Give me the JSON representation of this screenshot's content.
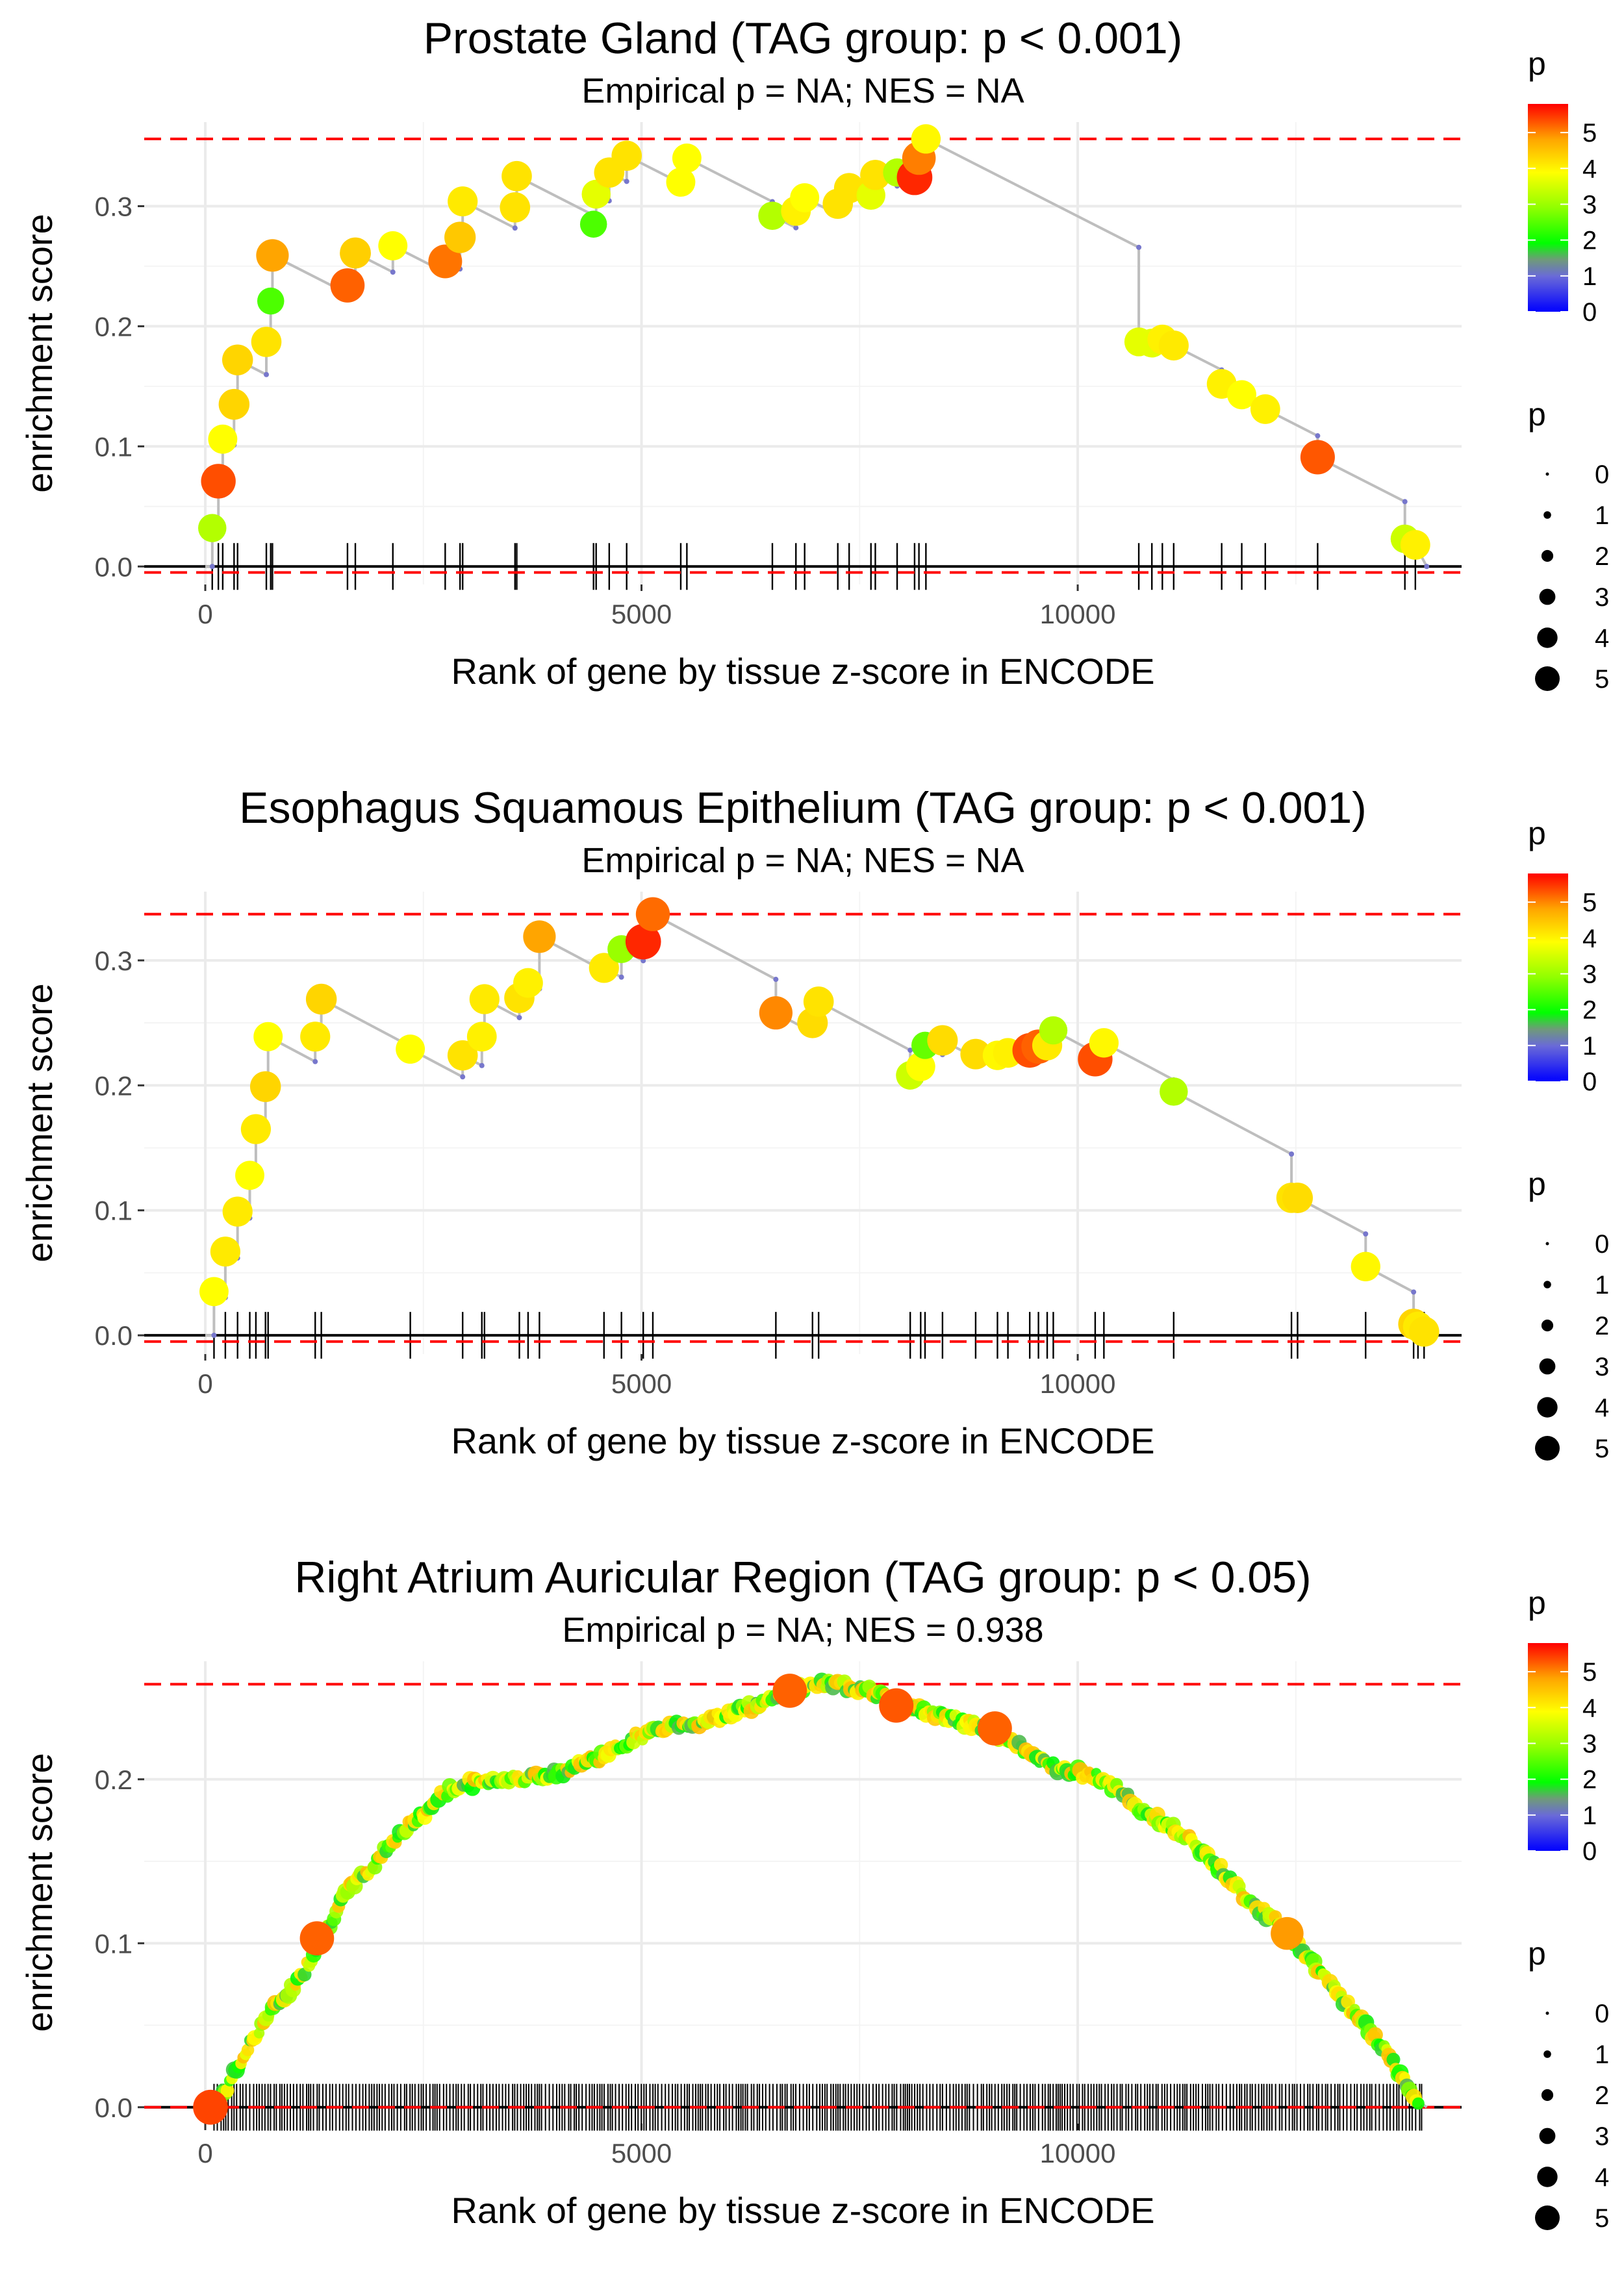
{
  "chart_data": [
    {
      "type": "scatter",
      "title": "Prostate Gland (TAG group: p < 0.001)",
      "subtitle": "Empirical p = NA; NES = NA",
      "xlabel": "Rank of gene by tissue z-score in ENCODE",
      "ylabel": "enrichment score",
      "xlim": [
        -700,
        14400
      ],
      "ylim": [
        -0.015,
        0.37
      ],
      "xticks": [
        0,
        5000,
        10000
      ],
      "yticks": [
        0.0,
        0.1,
        0.2,
        0.3
      ],
      "ytick_labels": [
        "0.0",
        "0.1",
        "0.2",
        "0.3"
      ],
      "hlines": [
        0.356,
        -0.005
      ],
      "end_rank": 14000,
      "hits": [
        [
          80,
          0.032,
          2.7
        ],
        [
          150,
          0.071,
          5.2
        ],
        [
          200,
          0.106,
          3.0
        ],
        [
          330,
          0.135,
          3.6
        ],
        [
          370,
          0.172,
          3.6
        ],
        [
          700,
          0.187,
          3.4
        ],
        [
          750,
          0.221,
          2.3
        ],
        [
          770,
          0.259,
          4.3
        ],
        [
          1630,
          0.234,
          5.0
        ],
        [
          1720,
          0.261,
          3.7
        ],
        [
          2150,
          0.267,
          3.0
        ],
        [
          2750,
          0.254,
          4.8
        ],
        [
          2920,
          0.274,
          3.8
        ],
        [
          2950,
          0.304,
          3.3
        ],
        [
          3550,
          0.299,
          3.4
        ],
        [
          3570,
          0.325,
          3.4
        ],
        [
          4450,
          0.285,
          2.3
        ],
        [
          4480,
          0.31,
          2.9
        ],
        [
          4630,
          0.328,
          3.4
        ],
        [
          4830,
          0.342,
          3.4
        ],
        [
          5450,
          0.32,
          3.0
        ],
        [
          5520,
          0.34,
          3.0
        ],
        [
          6500,
          0.292,
          2.7
        ],
        [
          6770,
          0.296,
          3.2
        ],
        [
          6870,
          0.307,
          3.0
        ],
        [
          7250,
          0.302,
          3.4
        ],
        [
          7380,
          0.315,
          3.4
        ],
        [
          7630,
          0.309,
          2.9
        ],
        [
          7680,
          0.326,
          3.4
        ],
        [
          7930,
          0.328,
          2.7
        ],
        [
          8130,
          0.324,
          5.6
        ],
        [
          8180,
          0.34,
          4.7
        ],
        [
          8260,
          0.356,
          3.1
        ],
        [
          10700,
          0.187,
          2.9
        ],
        [
          10850,
          0.186,
          2.9
        ],
        [
          10970,
          0.189,
          3.2
        ],
        [
          11100,
          0.184,
          3.3
        ],
        [
          11650,
          0.152,
          3.2
        ],
        [
          11880,
          0.143,
          3.0
        ],
        [
          12150,
          0.131,
          3.2
        ],
        [
          12750,
          0.091,
          5.1
        ],
        [
          13750,
          0.023,
          2.8
        ],
        [
          13870,
          0.018,
          3.2
        ]
      ]
    },
    {
      "type": "scatter",
      "title": "Esophagus Squamous Epithelium (TAG group: p < 0.001)",
      "subtitle": "Empirical p = NA; NES = NA",
      "xlabel": "Rank of gene by tissue z-score in ENCODE",
      "ylabel": "enrichment score",
      "xlim": [
        -700,
        14400
      ],
      "ylim": [
        -0.015,
        0.355
      ],
      "xticks": [
        0,
        5000,
        10000
      ],
      "yticks": [
        0.0,
        0.1,
        0.2,
        0.3
      ],
      "ytick_labels": [
        "0.0",
        "0.1",
        "0.2",
        "0.3"
      ],
      "hlines": [
        0.337,
        -0.005
      ],
      "end_rank": 14000,
      "hits": [
        [
          100,
          0.035,
          3.0
        ],
        [
          230,
          0.067,
          3.3
        ],
        [
          370,
          0.099,
          3.3
        ],
        [
          510,
          0.128,
          3.0
        ],
        [
          580,
          0.165,
          3.3
        ],
        [
          690,
          0.199,
          3.6
        ],
        [
          720,
          0.239,
          3.0
        ],
        [
          1260,
          0.239,
          3.3
        ],
        [
          1330,
          0.269,
          3.6
        ],
        [
          2350,
          0.229,
          3.0
        ],
        [
          2950,
          0.224,
          3.4
        ],
        [
          3170,
          0.239,
          3.2
        ],
        [
          3200,
          0.269,
          3.3
        ],
        [
          3600,
          0.27,
          3.4
        ],
        [
          3700,
          0.282,
          3.2
        ],
        [
          3830,
          0.319,
          4.3
        ],
        [
          4570,
          0.294,
          3.3
        ],
        [
          4770,
          0.309,
          2.6
        ],
        [
          5020,
          0.315,
          5.6
        ],
        [
          5130,
          0.337,
          4.9
        ],
        [
          6540,
          0.258,
          4.6
        ],
        [
          6960,
          0.25,
          3.5
        ],
        [
          7030,
          0.267,
          3.4
        ],
        [
          8080,
          0.208,
          2.8
        ],
        [
          8200,
          0.215,
          3.0
        ],
        [
          8250,
          0.232,
          2.4
        ],
        [
          8450,
          0.236,
          3.5
        ],
        [
          8830,
          0.225,
          3.5
        ],
        [
          9080,
          0.224,
          3.1
        ],
        [
          9200,
          0.226,
          3.2
        ],
        [
          9450,
          0.228,
          5.2
        ],
        [
          9550,
          0.231,
          5.0
        ],
        [
          9650,
          0.232,
          3.3
        ],
        [
          9720,
          0.244,
          2.7
        ],
        [
          10200,
          0.221,
          5.2
        ],
        [
          10300,
          0.234,
          3.1
        ],
        [
          11100,
          0.195,
          2.7
        ],
        [
          12450,
          0.11,
          3.4
        ],
        [
          12520,
          0.11,
          3.5
        ],
        [
          13300,
          0.055,
          3.1
        ],
        [
          13850,
          0.009,
          3.6
        ],
        [
          13900,
          0.007,
          3.3
        ],
        [
          13970,
          0.003,
          3.4
        ]
      ]
    },
    {
      "type": "scatter",
      "title": "Right Atrium Auricular Region (TAG group: p < 0.05)",
      "subtitle": "Empirical p = NA; NES = 0.938",
      "xlabel": "Rank of gene by tissue z-score in ENCODE",
      "ylabel": "enrichment score",
      "xlim": [
        -700,
        14400
      ],
      "ylim": [
        -0.01,
        0.272
      ],
      "xticks": [
        0,
        5000,
        10000
      ],
      "yticks": [
        0.0,
        0.1,
        0.2
      ],
      "ytick_labels": [
        "0.0",
        "0.1",
        "0.2"
      ],
      "hlines": [
        0.258,
        0.0
      ],
      "end_rank": 14000,
      "hit_range": [
        100,
        13950
      ],
      "curve": [
        [
          0,
          0
        ],
        [
          100,
          0
        ],
        [
          150,
          0.003
        ],
        [
          300,
          0.017
        ],
        [
          500,
          0.037
        ],
        [
          700,
          0.055
        ],
        [
          900,
          0.067
        ],
        [
          1100,
          0.08
        ],
        [
          1300,
          0.1
        ],
        [
          1500,
          0.12
        ],
        [
          1700,
          0.137
        ],
        [
          1900,
          0.145
        ],
        [
          2100,
          0.16
        ],
        [
          2300,
          0.17
        ],
        [
          2500,
          0.178
        ],
        [
          2700,
          0.19
        ],
        [
          2900,
          0.196
        ],
        [
          3100,
          0.198
        ],
        [
          3300,
          0.2
        ],
        [
          3500,
          0.2
        ],
        [
          3700,
          0.202
        ],
        [
          3900,
          0.201
        ],
        [
          4100,
          0.205
        ],
        [
          4300,
          0.21
        ],
        [
          4500,
          0.213
        ],
        [
          4700,
          0.218
        ],
        [
          4900,
          0.225
        ],
        [
          5100,
          0.228
        ],
        [
          5300,
          0.232
        ],
        [
          5500,
          0.234
        ],
        [
          5700,
          0.235
        ],
        [
          5900,
          0.238
        ],
        [
          6100,
          0.242
        ],
        [
          6300,
          0.245
        ],
        [
          6500,
          0.25
        ],
        [
          6700,
          0.254
        ],
        [
          6900,
          0.256
        ],
        [
          7100,
          0.258
        ],
        [
          7300,
          0.257
        ],
        [
          7500,
          0.256
        ],
        [
          7700,
          0.252
        ],
        [
          7900,
          0.247
        ],
        [
          8100,
          0.244
        ],
        [
          8300,
          0.24
        ],
        [
          8500,
          0.238
        ],
        [
          8700,
          0.234
        ],
        [
          8900,
          0.232
        ],
        [
          9100,
          0.226
        ],
        [
          9300,
          0.222
        ],
        [
          9500,
          0.213
        ],
        [
          9700,
          0.208
        ],
        [
          9900,
          0.206
        ],
        [
          10100,
          0.203
        ],
        [
          10300,
          0.2
        ],
        [
          10500,
          0.192
        ],
        [
          10700,
          0.182
        ],
        [
          10900,
          0.176
        ],
        [
          11100,
          0.17
        ],
        [
          11300,
          0.162
        ],
        [
          11500,
          0.152
        ],
        [
          11700,
          0.142
        ],
        [
          11900,
          0.13
        ],
        [
          12100,
          0.12
        ],
        [
          12300,
          0.112
        ],
        [
          12500,
          0.1
        ],
        [
          12700,
          0.088
        ],
        [
          12900,
          0.075
        ],
        [
          13100,
          0.062
        ],
        [
          13300,
          0.05
        ],
        [
          13500,
          0.036
        ],
        [
          13700,
          0.02
        ],
        [
          13850,
          0.008
        ],
        [
          13950,
          0.002
        ],
        [
          14000,
          0
        ]
      ],
      "highlights": [
        [
          60,
          0.0,
          5.3
        ],
        [
          1280,
          0.103,
          5.0
        ],
        [
          6700,
          0.254,
          5.0
        ],
        [
          7920,
          0.245,
          5.1
        ],
        [
          9050,
          0.231,
          5.0
        ],
        [
          12400,
          0.106,
          4.4
        ]
      ]
    }
  ],
  "legends": [
    {
      "color_title": "p",
      "color_ticks": [
        "5",
        "4",
        "3",
        "2",
        "1",
        "0"
      ],
      "size_title": "p",
      "size_ticks": [
        "0",
        "1",
        "2",
        "3",
        "4",
        "5"
      ]
    },
    {
      "color_title": "p",
      "color_ticks": [
        "5",
        "4",
        "3",
        "2",
        "1",
        "0"
      ],
      "size_title": "p",
      "size_ticks": [
        "0",
        "1",
        "2",
        "3",
        "4",
        "5"
      ]
    },
    {
      "color_title": "p",
      "color_ticks": [
        "5",
        "4",
        "3",
        "2",
        "1",
        "0"
      ],
      "size_title": "p",
      "size_ticks": [
        "0",
        "1",
        "2",
        "3",
        "4",
        "5"
      ]
    }
  ],
  "colors": {
    "background": "#ffffff",
    "grid": "#ebebeb",
    "trace": "#bebebe",
    "hline": "#ff0000",
    "axis": "#000000",
    "gradient": [
      "#0000ff",
      "#00ff00",
      "#ffff00",
      "#ff0000"
    ]
  }
}
